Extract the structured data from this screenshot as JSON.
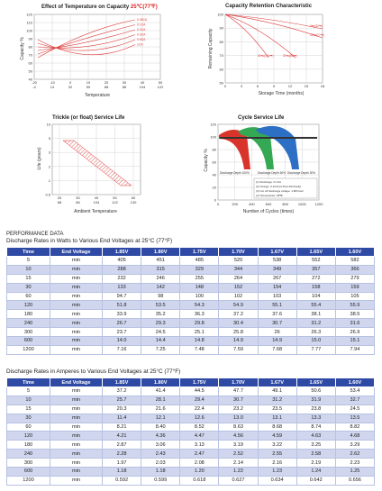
{
  "charts": {
    "temp_capacity": {
      "title": "Effect of Temperature on Capacity",
      "title_unit": "25℃(77℉)",
      "ylabel": "Capacity %",
      "xlabel": "Temperature",
      "y_ticks": [
        "120",
        "110",
        "100",
        "90",
        "80",
        "70",
        "60",
        "50",
        "40"
      ],
      "x_ticks_c": [
        "-20",
        "-10",
        "0",
        "10",
        "20",
        "30",
        "40",
        "50"
      ],
      "x_ticks_f": [
        "-4",
        "14",
        "32",
        "50",
        "68",
        "86",
        "104",
        "122"
      ],
      "curve_labels": [
        "0.05CA",
        "0.1CA",
        "0.2CA",
        "0.3CA",
        "0.6CA",
        "1CA"
      ]
    },
    "capacity_retention": {
      "title": "Capacity Retention Characteristic",
      "ylabel": "Remaining Capacity",
      "xlabel": "Storage Time (months)",
      "y_ticks": [
        "100",
        "90",
        "80",
        "70",
        "60",
        "50"
      ],
      "x_ticks": [
        "0",
        "3",
        "6",
        "9",
        "12",
        "15",
        "18"
      ],
      "curve_labels": [
        "0℃(32℉)",
        "25℃(77℉)",
        "30℃(86℉)",
        "40℃(104℉)"
      ]
    },
    "float_life": {
      "title": "Trickle (or float) Service Life",
      "ylabel": "Life (years)",
      "xlabel": "Ambient Temperature",
      "y_ticks": [
        "10",
        "5",
        "3",
        "2",
        "1",
        "0.5"
      ],
      "x_ticks_c": [
        "20",
        "30",
        "40",
        "50",
        "60"
      ],
      "x_ticks_f": [
        "68",
        "86",
        "104",
        "122",
        "140"
      ]
    },
    "cycle_life": {
      "title": "Cycle Service Life",
      "ylabel": "Capacity %",
      "xlabel": "Number of Cycles (times)",
      "y_ticks": [
        "120",
        "100",
        "80",
        "60",
        "40",
        "20",
        "0"
      ],
      "x_ticks": [
        "0",
        "200",
        "400",
        "600",
        "800",
        "1000",
        "1200"
      ],
      "dod_labels": [
        "Discharge Depth 100%",
        "Discharge Depth 50%",
        "Discharge Depth 30%"
      ],
      "notes": [
        "(1) Discharge: 0.1CA",
        "(2) Charge: 0.1CA(14.4V(2.40V/Cell))",
        "(3) Cut off discharge voltage: 1.80V/cell",
        "(4) Temperature: 25℃"
      ]
    }
  },
  "performance": {
    "heading": "PERFORMANCE DATA",
    "watts_title": "Discharge Rates in Watts to Various End Voltages at 25°C (77°F)",
    "amps_title": "Discharge Rates in Amperes to Various End Voltages at 25°C (77°F)",
    "headers": [
      "Time",
      "End Voltage",
      "1.85V",
      "1.80V",
      "1.75V",
      "1.70V",
      "1.67V",
      "1.65V",
      "1.60V"
    ],
    "watts_rows": [
      [
        "5",
        "min",
        "405",
        "451",
        "485",
        "520",
        "538",
        "552",
        "582"
      ],
      [
        "10",
        "min",
        "288",
        "315",
        "329",
        "344",
        "349",
        "357",
        "366"
      ],
      [
        "15",
        "min",
        "232",
        "246",
        "255",
        "264",
        "267",
        "272",
        "279"
      ],
      [
        "30",
        "min",
        "133",
        "142",
        "148",
        "152",
        "154",
        "158",
        "159"
      ],
      [
        "60",
        "min",
        "94.7",
        "98",
        "100",
        "102",
        "103",
        "104",
        "105"
      ],
      [
        "120",
        "min",
        "51.8",
        "53.5",
        "54.3",
        "54.9",
        "55.1",
        "55.4",
        "55.9"
      ],
      [
        "180",
        "min",
        "33.9",
        "35.2",
        "36.3",
        "37.2",
        "37.6",
        "38.1",
        "38.5"
      ],
      [
        "240",
        "min",
        "26.7",
        "29.3",
        "29.8",
        "30.4",
        "30.7",
        "31.2",
        "31.6"
      ],
      [
        "300",
        "min",
        "23.7",
        "24.5",
        "25.1",
        "25.8",
        "26",
        "26.3",
        "26.9"
      ],
      [
        "600",
        "min",
        "14.0",
        "14.4",
        "14.8",
        "14.9",
        "14.9",
        "15.0",
        "15.1"
      ],
      [
        "1200",
        "min",
        "7.16",
        "7.25",
        "7.48",
        "7.59",
        "7.68",
        "7.77",
        "7.94"
      ]
    ],
    "amps_rows": [
      [
        "5",
        "min",
        "37.2",
        "41.4",
        "44.5",
        "47.7",
        "49.1",
        "50.6",
        "53.4"
      ],
      [
        "10",
        "min",
        "25.7",
        "28.1",
        "29.4",
        "30.7",
        "31.2",
        "31.9",
        "32.7"
      ],
      [
        "15",
        "min",
        "20.3",
        "21.6",
        "22.4",
        "23.2",
        "23.5",
        "23.8",
        "24.5"
      ],
      [
        "30",
        "min",
        "11.4",
        "12.1",
        "12.6",
        "13.0",
        "13.1",
        "13.3",
        "13.5"
      ],
      [
        "60",
        "min",
        "8.21",
        "8.40",
        "8.52",
        "8.63",
        "8.68",
        "8.74",
        "8.82"
      ],
      [
        "120",
        "min",
        "4.21",
        "4.36",
        "4.47",
        "4.56",
        "4.59",
        "4.63",
        "4.68"
      ],
      [
        "180",
        "min",
        "2.87",
        "3.06",
        "3.13",
        "3.19",
        "3.22",
        "3.25",
        "3.29"
      ],
      [
        "240",
        "min",
        "2.28",
        "2.43",
        "2.47",
        "2.52",
        "2.55",
        "2.58",
        "2.62"
      ],
      [
        "300",
        "min",
        "1.97",
        "2.03",
        "2.08",
        "2.14",
        "2.16",
        "2.19",
        "2.23"
      ],
      [
        "600",
        "min",
        "1.18",
        "1.18",
        "1.20",
        "1.22",
        "1.23",
        "1.24",
        "1.25"
      ],
      [
        "1200",
        "min",
        "0.592",
        "0.599",
        "0.618",
        "0.627",
        "0.634",
        "0.642",
        "0.656"
      ]
    ]
  }
}
